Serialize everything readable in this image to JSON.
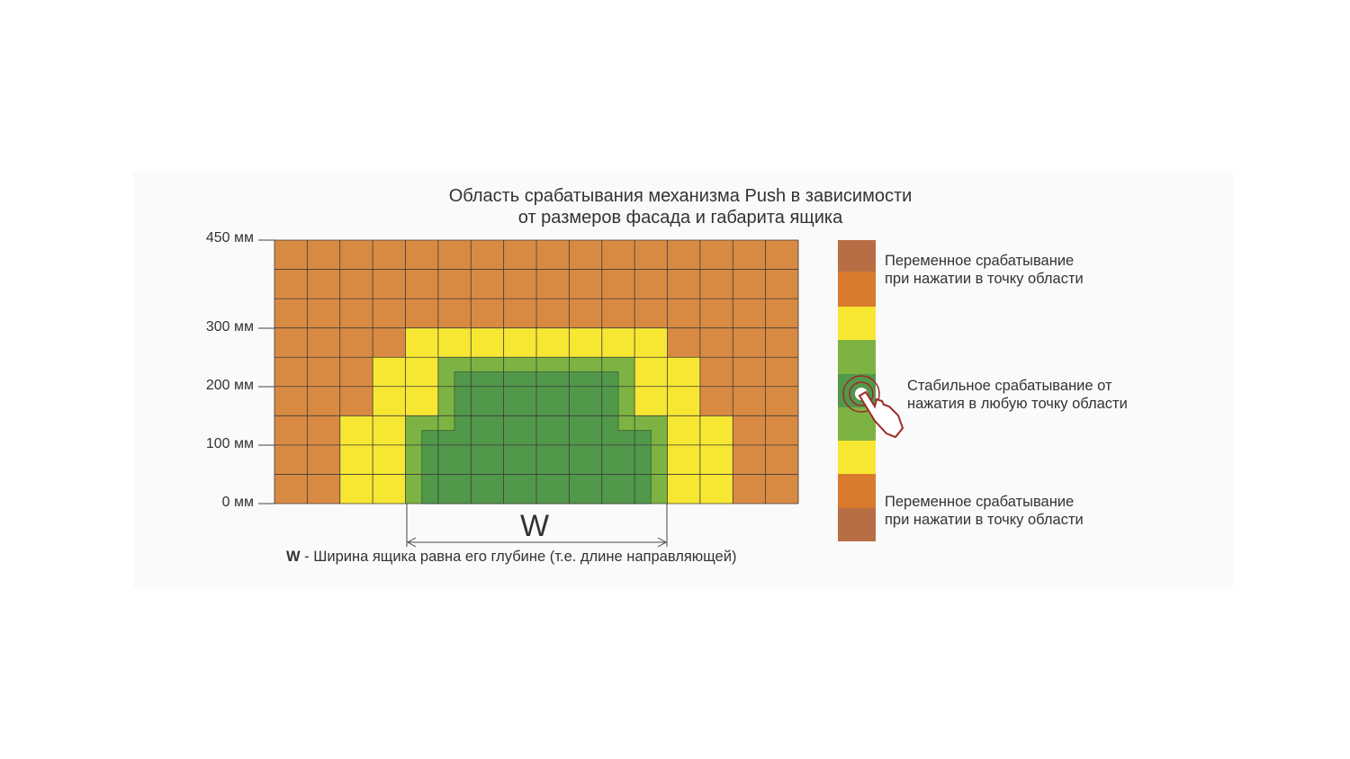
{
  "title": {
    "line1": "Область срабатывания механизма Push в зависимости",
    "line2": "от размеров фасада и габарита ящика"
  },
  "y_axis": {
    "ticks": [
      "450 мм",
      "300 мм",
      "200 мм",
      "100 мм",
      "0 мм"
    ]
  },
  "grid": {
    "columns": 16,
    "rows": 9,
    "zones_from_top": [
      "OOOOOOOOOOOOOOOO",
      "OOOOOOOOOOOOOOOO",
      "OOOOOOOOOOOOOOOO",
      "OOOOYYYYYYYYOOOO",
      "OOOYYGGGGGGYYOOO",
      "OOOYYGGGGGGYYOOO",
      "OOYYGGGGGGGGYYOO",
      "OOYYGGGGGGGGYYOO",
      "OOYYGGGGGGGGYYOO"
    ]
  },
  "colors": {
    "orange": "#d98a42",
    "yellow": "#f7e733",
    "light_green": "#7db342",
    "dark_green": "#52984a",
    "brown": "#b86e45",
    "legend_orange": "#d97b2c"
  },
  "dimension": {
    "label": "W",
    "note_bold": "W",
    "note": " - Ширина ящика равна его глубине (т.е. длине направляющей)"
  },
  "legend": {
    "top": {
      "line1": "Переменное срабатывание",
      "line2": "при нажатии в точку области"
    },
    "middle": {
      "line1": "Стабильное срабатывание от",
      "line2": "нажатия в любую точку области"
    },
    "bottom": {
      "line1": "Переменное срабатывание",
      "line2": "при нажатии в точку области"
    },
    "icon": "hand-press-icon"
  }
}
